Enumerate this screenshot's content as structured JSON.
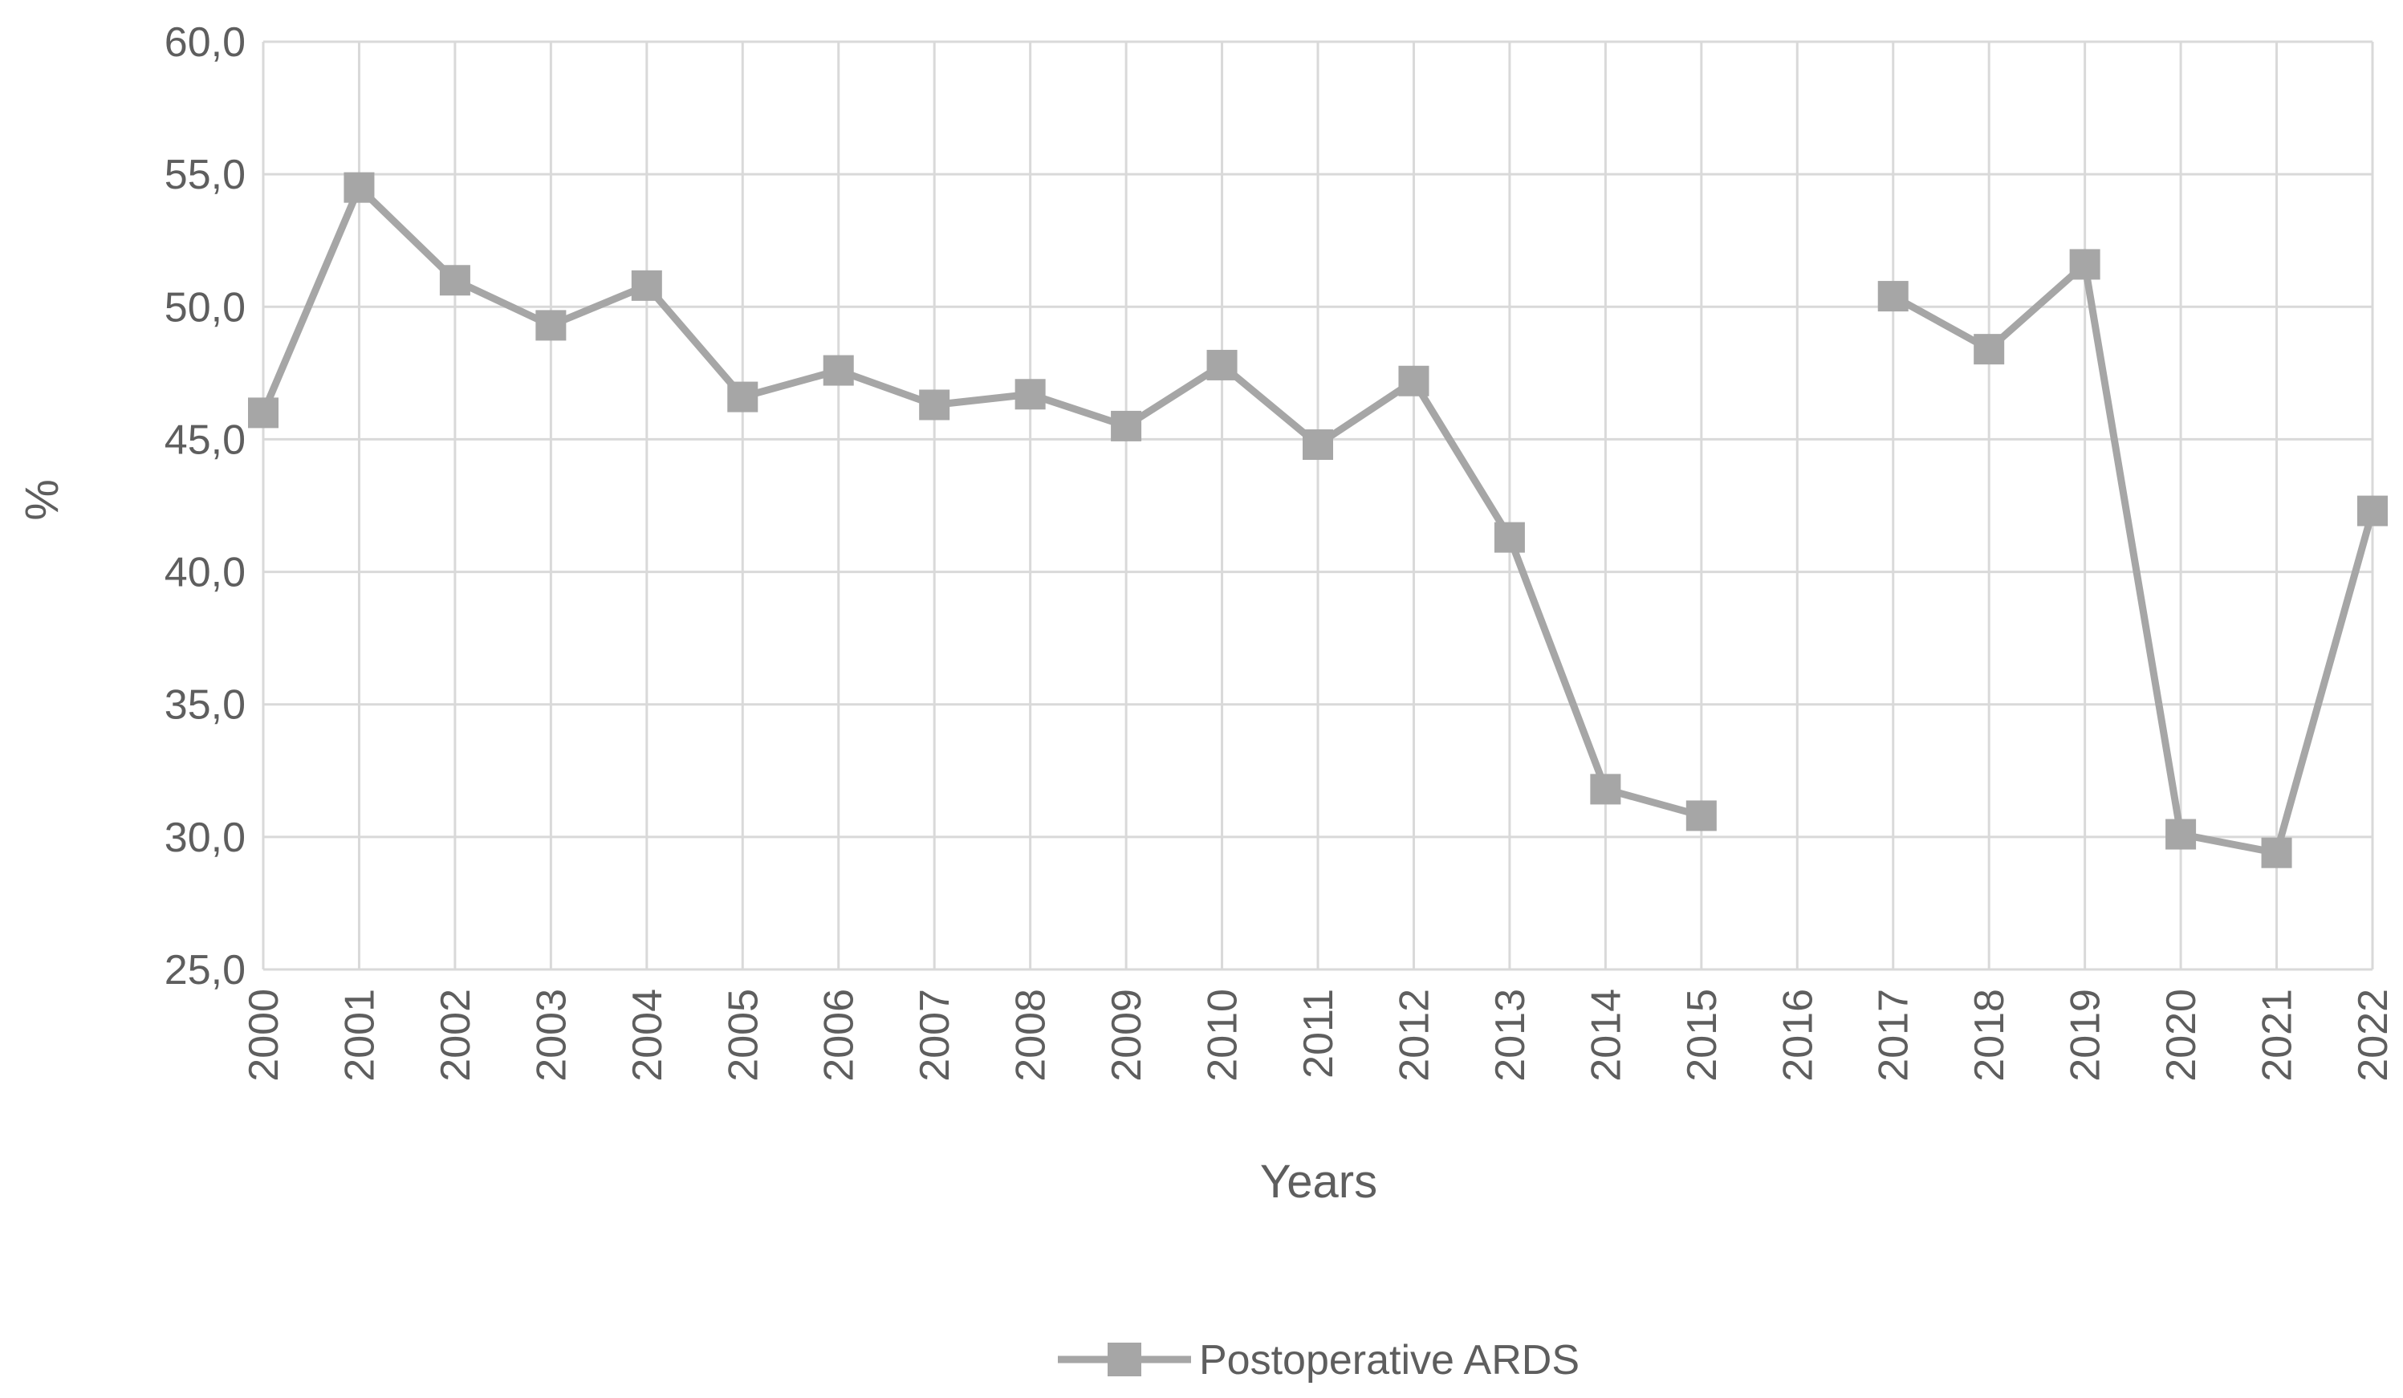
{
  "chart_data": {
    "type": "line",
    "title": "",
    "xlabel": "Years",
    "ylabel": "%",
    "ylim": [
      25,
      60
    ],
    "y_ticks": [
      "25,0",
      "30,0",
      "35,0",
      "40,0",
      "45,0",
      "50,0",
      "55,0",
      "60,0"
    ],
    "x": [
      "2000",
      "2001",
      "2002",
      "2003",
      "2004",
      "2005",
      "2006",
      "2007",
      "2008",
      "2009",
      "2010",
      "2011",
      "2012",
      "2013",
      "2014",
      "2015",
      "2016",
      "2017",
      "2018",
      "2019",
      "2020",
      "2021",
      "2022"
    ],
    "grid": true,
    "legend_position": "bottom",
    "series": [
      {
        "name": "Postoperative ARDS",
        "color": "#a6a6a6",
        "marker": "square",
        "values": [
          46.0,
          54.5,
          51.0,
          49.3,
          50.8,
          46.6,
          47.6,
          46.3,
          46.7,
          45.5,
          47.8,
          44.8,
          47.2,
          41.3,
          31.8,
          30.8,
          null,
          50.4,
          48.4,
          51.6,
          30.1,
          29.4,
          42.3
        ]
      }
    ]
  }
}
